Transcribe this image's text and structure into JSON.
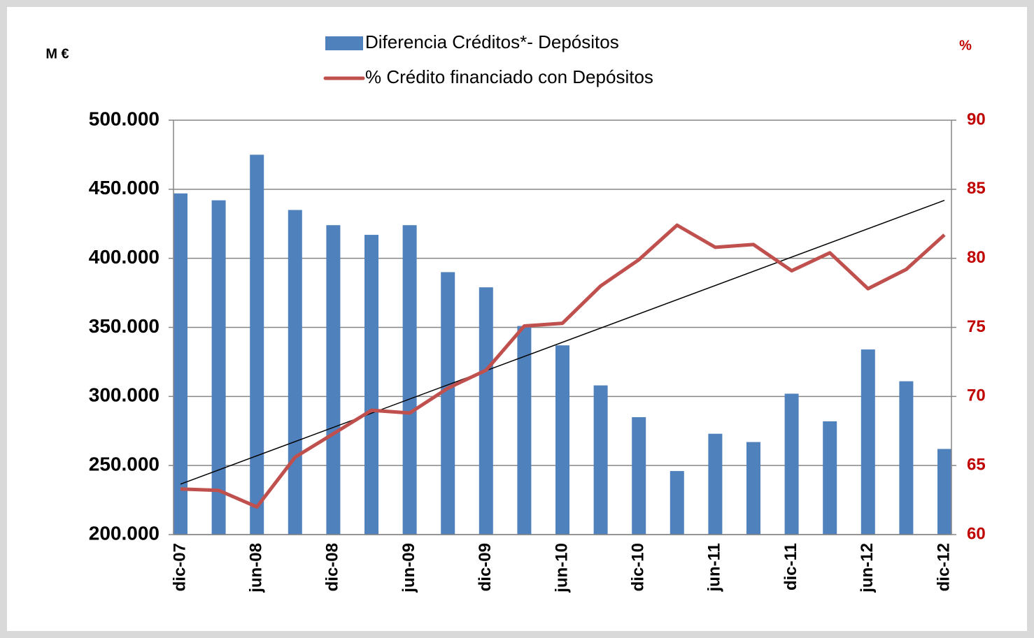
{
  "chart_data": {
    "type": "bar_line",
    "ylabel": "M €",
    "y2label": "%",
    "categories": [
      "dic-07",
      null,
      "jun-08",
      null,
      "dic-08",
      null,
      "jun-09",
      null,
      "dic-09",
      null,
      "jun-10",
      null,
      "dic-10",
      null,
      "jun-11",
      null,
      "dic-11",
      null,
      "jun-12",
      null,
      "dic-12"
    ],
    "series": [
      {
        "name": "Diferencia Créditos*- Depósitos",
        "type": "bar",
        "color": "#4f81bd",
        "values": [
          447000,
          442000,
          475000,
          435000,
          424000,
          417000,
          424000,
          390000,
          379000,
          351000,
          337000,
          308000,
          285000,
          246000,
          273000,
          267000,
          302000,
          282000,
          334000,
          311000,
          262000
        ]
      },
      {
        "name": "% Crédito financiado con Depósitos",
        "type": "line",
        "axis": "y2",
        "color": "#c0504d",
        "trendline": true,
        "values": [
          63.3,
          63.2,
          62.0,
          65.6,
          67.3,
          69.0,
          68.8,
          70.6,
          71.9,
          75.1,
          75.3,
          78.0,
          79.9,
          82.4,
          80.8,
          81.0,
          79.1,
          80.4,
          77.8,
          79.2,
          81.7
        ]
      }
    ],
    "ylim": [
      200000,
      500000
    ],
    "yticks": [
      {
        "value": 200000,
        "label": "200.000"
      },
      {
        "value": 250000,
        "label": "250.000"
      },
      {
        "value": 300000,
        "label": "300.000"
      },
      {
        "value": 350000,
        "label": "350.000"
      },
      {
        "value": 400000,
        "label": "400.000"
      },
      {
        "value": 450000,
        "label": "450.000"
      },
      {
        "value": 500000,
        "label": "500.000"
      }
    ],
    "y2lim": [
      60,
      90
    ],
    "y2ticks": [
      60,
      65,
      70,
      75,
      80,
      85,
      90
    ],
    "grid": true
  }
}
